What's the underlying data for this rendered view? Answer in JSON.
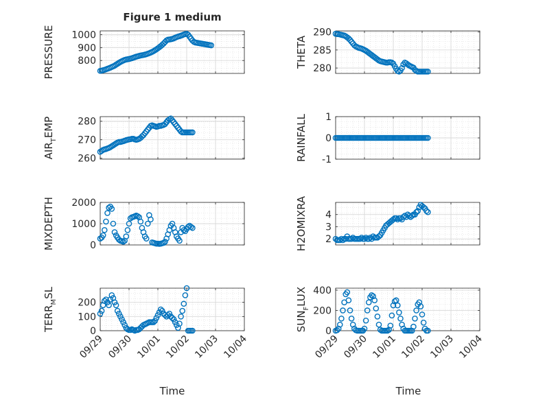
{
  "figure": {
    "title": "Figure 1 medium",
    "marker_color": "#0072BD",
    "axis_color": "#262626",
    "grid_color": "#d9d9d9"
  },
  "chart_data": [
    {
      "type": "scatter",
      "ylabel": "PRESSURE",
      "ylim": [
        700,
        1030
      ],
      "yticks": [
        800,
        900,
        1000
      ],
      "yticklabels": [
        "800",
        "900",
        "1000"
      ],
      "x": [
        0.0,
        0.05,
        0.1,
        0.15,
        0.2,
        0.25,
        0.3,
        0.35,
        0.4,
        0.45,
        0.5,
        0.55,
        0.6,
        0.65,
        0.7,
        0.75,
        0.8,
        0.85,
        0.9,
        0.95,
        1.0,
        1.05,
        1.1,
        1.15,
        1.2,
        1.25,
        1.3,
        1.35,
        1.4,
        1.45,
        1.5,
        1.55,
        1.6,
        1.65,
        1.7,
        1.75,
        1.8,
        1.85,
        1.9,
        1.95,
        2.0,
        2.05,
        2.1,
        2.15,
        2.2,
        2.25,
        2.3,
        2.35,
        2.4,
        2.45,
        2.5,
        2.55,
        2.6,
        2.65,
        2.7,
        2.75,
        2.8,
        2.85,
        2.9,
        2.95,
        3.0,
        3.05,
        3.1,
        3.15,
        3.2,
        3.25,
        3.3,
        3.35,
        3.4,
        3.45,
        3.5,
        3.55,
        3.6,
        3.65,
        3.7,
        3.75,
        3.8,
        3.85
      ],
      "y": [
        720,
        722,
        725,
        728,
        732,
        736,
        740,
        745,
        750,
        755,
        760,
        768,
        775,
        782,
        789,
        795,
        800,
        805,
        808,
        810,
        812,
        815,
        818,
        822,
        826,
        830,
        833,
        836,
        839,
        841,
        843,
        846,
        849,
        853,
        857,
        862,
        867,
        873,
        880,
        887,
        895,
        903,
        912,
        922,
        932,
        944,
        956,
        962,
        963,
        965,
        968,
        972,
        977,
        982,
        986,
        989,
        993,
        997,
        1002,
        1005,
        1007,
        1000,
        985,
        970,
        955,
        945,
        940,
        938,
        936,
        934,
        932,
        930,
        928,
        926,
        924,
        922,
        920,
        918
      ]
    },
    {
      "type": "scatter",
      "ylabel": "THETA",
      "ylim": [
        278.5,
        290.3
      ],
      "yticks": [
        280,
        285,
        290
      ],
      "yticklabels": [
        "280",
        "285",
        "290"
      ],
      "x": [
        0.0,
        0.05,
        0.1,
        0.15,
        0.2,
        0.25,
        0.3,
        0.35,
        0.4,
        0.45,
        0.5,
        0.55,
        0.6,
        0.65,
        0.7,
        0.75,
        0.8,
        0.85,
        0.9,
        0.95,
        1.0,
        1.05,
        1.1,
        1.15,
        1.2,
        1.25,
        1.3,
        1.35,
        1.4,
        1.45,
        1.5,
        1.55,
        1.6,
        1.65,
        1.7,
        1.75,
        1.8,
        1.85,
        1.9,
        1.95,
        2.0,
        2.05,
        2.1,
        2.15,
        2.2,
        2.25,
        2.3,
        2.35,
        2.4,
        2.45,
        2.5,
        2.55,
        2.6,
        2.65,
        2.7,
        2.75,
        2.8,
        2.85,
        2.9,
        2.95,
        3.0,
        3.05,
        3.1,
        3.15,
        3.2
      ],
      "y": [
        289.5,
        289.4,
        289.4,
        289.3,
        289.2,
        289.1,
        289.0,
        288.8,
        288.5,
        288.2,
        287.8,
        287.3,
        286.8,
        286.3,
        286.0,
        285.8,
        285.6,
        285.5,
        285.4,
        285.2,
        285.0,
        284.8,
        284.5,
        284.2,
        283.9,
        283.6,
        283.3,
        283.0,
        282.7,
        282.4,
        282.1,
        281.9,
        281.8,
        281.7,
        281.6,
        281.5,
        281.5,
        281.6,
        281.6,
        281.5,
        281.2,
        280.5,
        279.8,
        279.2,
        279.0,
        279.3,
        280.0,
        281.0,
        281.5,
        281.3,
        281.0,
        280.7,
        280.5,
        280.3,
        280.1,
        279.5,
        279.2,
        279.0,
        279.0,
        279.0,
        279.0,
        279.0,
        279.0,
        279.0,
        279.0
      ]
    },
    {
      "type": "scatter",
      "ylabel": "AIR_TEMP",
      "ylim": [
        259.5,
        282.5
      ],
      "yticks": [
        260,
        270,
        280
      ],
      "yticklabels": [
        "260",
        "270",
        "280"
      ],
      "x": [
        0.0,
        0.05,
        0.1,
        0.15,
        0.2,
        0.25,
        0.3,
        0.35,
        0.4,
        0.45,
        0.5,
        0.55,
        0.6,
        0.65,
        0.7,
        0.75,
        0.8,
        0.85,
        0.9,
        0.95,
        1.0,
        1.05,
        1.1,
        1.15,
        1.2,
        1.25,
        1.3,
        1.35,
        1.4,
        1.45,
        1.5,
        1.55,
        1.6,
        1.65,
        1.7,
        1.75,
        1.8,
        1.85,
        1.9,
        1.95,
        2.0,
        2.05,
        2.1,
        2.15,
        2.2,
        2.25,
        2.3,
        2.35,
        2.4,
        2.45,
        2.5,
        2.55,
        2.6,
        2.65,
        2.7,
        2.75,
        2.8,
        2.85,
        2.9,
        2.95,
        3.0,
        3.05,
        3.1,
        3.15,
        3.2
      ],
      "y": [
        263.5,
        264.0,
        264.5,
        264.8,
        265.0,
        265.3,
        265.6,
        266.0,
        266.5,
        267.0,
        267.5,
        268.0,
        268.5,
        268.8,
        268.8,
        269.0,
        269.2,
        269.5,
        269.8,
        270.0,
        270.2,
        270.3,
        270.5,
        270.5,
        270.2,
        270.0,
        270.2,
        270.5,
        271.0,
        271.8,
        272.5,
        273.5,
        274.5,
        275.5,
        276.5,
        277.5,
        277.8,
        277.5,
        277.3,
        277.0,
        277.2,
        277.5,
        277.5,
        277.8,
        278.0,
        278.5,
        279.5,
        280.5,
        281.0,
        281.5,
        280.5,
        279.5,
        278.5,
        277.5,
        276.5,
        275.5,
        274.5,
        274.0,
        274.0,
        274.0,
        274.0,
        274.0,
        274.0,
        274.0,
        274.0
      ]
    },
    {
      "type": "scatter",
      "ylabel": "RAINFALL",
      "ylim": [
        -1,
        1
      ],
      "yticks": [
        -1,
        0,
        1
      ],
      "yticklabels": [
        "-1",
        "0",
        "1"
      ],
      "x": [
        0.0,
        0.05,
        0.1,
        0.15,
        0.2,
        0.25,
        0.3,
        0.35,
        0.4,
        0.45,
        0.5,
        0.55,
        0.6,
        0.65,
        0.7,
        0.75,
        0.8,
        0.85,
        0.9,
        0.95,
        1.0,
        1.05,
        1.1,
        1.15,
        1.2,
        1.25,
        1.3,
        1.35,
        1.4,
        1.45,
        1.5,
        1.55,
        1.6,
        1.65,
        1.7,
        1.75,
        1.8,
        1.85,
        1.9,
        1.95,
        2.0,
        2.05,
        2.1,
        2.15,
        2.2,
        2.25,
        2.3,
        2.35,
        2.4,
        2.45,
        2.5,
        2.55,
        2.6,
        2.65,
        2.7,
        2.75,
        2.8,
        2.85,
        2.9,
        2.95,
        3.0,
        3.05,
        3.1,
        3.15,
        3.2
      ],
      "y": [
        0,
        0,
        0,
        0,
        0,
        0,
        0,
        0,
        0,
        0,
        0,
        0,
        0,
        0,
        0,
        0,
        0,
        0,
        0,
        0,
        0,
        0,
        0,
        0,
        0,
        0,
        0,
        0,
        0,
        0,
        0,
        0,
        0,
        0,
        0,
        0,
        0,
        0,
        0,
        0,
        0,
        0,
        0,
        0,
        0,
        0,
        0,
        0,
        0,
        0,
        0,
        0,
        0,
        0,
        0,
        0,
        0,
        0,
        0,
        0,
        0,
        0,
        0,
        0,
        0
      ]
    },
    {
      "type": "scatter",
      "ylabel": "MIXDEPTH",
      "ylim": [
        0,
        2000
      ],
      "yticks": [
        0,
        1000,
        2000
      ],
      "yticklabels": [
        "0",
        "1000",
        "2000"
      ],
      "x": [
        0.0,
        0.05,
        0.1,
        0.15,
        0.2,
        0.25,
        0.3,
        0.35,
        0.4,
        0.45,
        0.5,
        0.55,
        0.6,
        0.65,
        0.7,
        0.75,
        0.8,
        0.85,
        0.9,
        0.95,
        1.0,
        1.05,
        1.1,
        1.15,
        1.2,
        1.25,
        1.3,
        1.35,
        1.4,
        1.45,
        1.5,
        1.55,
        1.6,
        1.65,
        1.7,
        1.75,
        1.8,
        1.85,
        1.9,
        1.95,
        2.0,
        2.05,
        2.1,
        2.15,
        2.2,
        2.25,
        2.3,
        2.35,
        2.4,
        2.45,
        2.5,
        2.55,
        2.6,
        2.65,
        2.7,
        2.75,
        2.8,
        2.85,
        2.9,
        2.95,
        3.0,
        3.05,
        3.1,
        3.15,
        3.2
      ],
      "y": [
        300,
        350,
        450,
        700,
        1100,
        1500,
        1750,
        1800,
        1700,
        1000,
        600,
        450,
        350,
        250,
        200,
        180,
        150,
        200,
        400,
        700,
        1000,
        1250,
        1300,
        1320,
        1350,
        1380,
        1350,
        1300,
        1100,
        800,
        600,
        400,
        300,
        1000,
        1400,
        1200,
        120,
        100,
        80,
        60,
        60,
        50,
        60,
        80,
        100,
        150,
        300,
        500,
        700,
        900,
        1000,
        800,
        600,
        400,
        300,
        200,
        600,
        800,
        700,
        650,
        750,
        850,
        900,
        850,
        800
      ]
    },
    {
      "type": "scatter",
      "ylabel": "H2OMIXRA",
      "ylim": [
        1.5,
        5
      ],
      "yticks": [
        2,
        3,
        4
      ],
      "yticklabels": [
        "2",
        "3",
        "4"
      ],
      "x": [
        0.0,
        0.05,
        0.1,
        0.15,
        0.2,
        0.25,
        0.3,
        0.35,
        0.4,
        0.45,
        0.5,
        0.55,
        0.6,
        0.65,
        0.7,
        0.75,
        0.8,
        0.85,
        0.9,
        0.95,
        1.0,
        1.05,
        1.1,
        1.15,
        1.2,
        1.25,
        1.3,
        1.35,
        1.4,
        1.45,
        1.5,
        1.55,
        1.6,
        1.65,
        1.7,
        1.75,
        1.8,
        1.85,
        1.9,
        1.95,
        2.0,
        2.05,
        2.1,
        2.15,
        2.2,
        2.25,
        2.3,
        2.35,
        2.4,
        2.45,
        2.5,
        2.55,
        2.6,
        2.65,
        2.7,
        2.75,
        2.8,
        2.85,
        2.9,
        2.95,
        3.0,
        3.05,
        3.1,
        3.15,
        3.2
      ],
      "y": [
        2.0,
        1.9,
        1.9,
        1.9,
        2.0,
        1.9,
        2.0,
        2.0,
        2.2,
        2.0,
        2.0,
        2.0,
        2.1,
        2.0,
        2.0,
        2.0,
        2.0,
        2.0,
        2.1,
        2.0,
        2.0,
        2.1,
        2.0,
        2.0,
        2.1,
        2.0,
        2.2,
        2.1,
        2.1,
        2.1,
        2.2,
        2.3,
        2.5,
        2.7,
        2.9,
        3.1,
        3.2,
        3.3,
        3.4,
        3.5,
        3.6,
        3.7,
        3.7,
        3.6,
        3.7,
        3.7,
        3.6,
        3.8,
        3.9,
        3.8,
        4.0,
        3.9,
        3.8,
        3.9,
        4.0,
        4.0,
        4.2,
        4.3,
        4.6,
        4.8,
        4.7,
        4.6,
        4.5,
        4.3,
        4.2
      ]
    },
    {
      "type": "scatter",
      "ylabel": "TERR_MSL",
      "ylim": [
        0,
        300
      ],
      "yticks": [
        0,
        100,
        200
      ],
      "yticklabels": [
        "0",
        "100",
        "200"
      ],
      "x": [
        0.0,
        0.05,
        0.1,
        0.15,
        0.2,
        0.25,
        0.3,
        0.35,
        0.4,
        0.45,
        0.5,
        0.55,
        0.6,
        0.65,
        0.7,
        0.75,
        0.8,
        0.85,
        0.9,
        0.95,
        1.0,
        1.05,
        1.1,
        1.15,
        1.2,
        1.25,
        1.3,
        1.35,
        1.4,
        1.45,
        1.5,
        1.55,
        1.6,
        1.65,
        1.7,
        1.75,
        1.8,
        1.85,
        1.9,
        1.95,
        2.0,
        2.05,
        2.1,
        2.15,
        2.2,
        2.25,
        2.3,
        2.35,
        2.4,
        2.45,
        2.5,
        2.55,
        2.6,
        2.65,
        2.7,
        2.75,
        2.8,
        2.85,
        2.9,
        2.95,
        3.0,
        3.05,
        3.1,
        3.15,
        3.2
      ],
      "y": [
        120,
        140,
        180,
        210,
        220,
        200,
        180,
        220,
        250,
        230,
        200,
        180,
        140,
        120,
        100,
        80,
        60,
        40,
        20,
        10,
        5,
        5,
        10,
        5,
        0,
        5,
        5,
        10,
        20,
        30,
        40,
        45,
        50,
        55,
        60,
        60,
        60,
        60,
        70,
        90,
        110,
        130,
        150,
        140,
        120,
        110,
        100,
        110,
        120,
        100,
        90,
        80,
        60,
        40,
        20,
        50,
        100,
        140,
        190,
        250,
        300,
        0,
        0,
        0,
        0
      ]
    },
    {
      "type": "scatter",
      "ylabel": "SUN_FLUX",
      "ylim": [
        0,
        420
      ],
      "yticks": [
        0,
        200,
        400
      ],
      "yticklabels": [
        "0",
        "200",
        "400"
      ],
      "x": [
        0.0,
        0.05,
        0.1,
        0.15,
        0.2,
        0.25,
        0.3,
        0.35,
        0.4,
        0.45,
        0.5,
        0.55,
        0.6,
        0.65,
        0.7,
        0.75,
        0.8,
        0.85,
        0.9,
        0.95,
        1.0,
        1.05,
        1.1,
        1.15,
        1.2,
        1.25,
        1.3,
        1.35,
        1.4,
        1.45,
        1.5,
        1.55,
        1.6,
        1.65,
        1.7,
        1.75,
        1.8,
        1.85,
        1.9,
        1.95,
        2.0,
        2.05,
        2.1,
        2.15,
        2.2,
        2.25,
        2.3,
        2.35,
        2.4,
        2.45,
        2.5,
        2.55,
        2.6,
        2.65,
        2.7,
        2.75,
        2.8,
        2.85,
        2.9,
        2.95,
        3.0,
        3.05,
        3.1,
        3.15,
        3.2
      ],
      "y": [
        0,
        5,
        20,
        60,
        120,
        200,
        280,
        360,
        380,
        300,
        200,
        120,
        60,
        20,
        5,
        0,
        0,
        0,
        0,
        0,
        20,
        100,
        200,
        280,
        330,
        350,
        340,
        300,
        220,
        140,
        60,
        10,
        0,
        0,
        0,
        0,
        0,
        10,
        50,
        150,
        250,
        290,
        300,
        250,
        180,
        120,
        60,
        20,
        0,
        0,
        0,
        0,
        0,
        0,
        40,
        120,
        200,
        260,
        280,
        240,
        160,
        80,
        20,
        0,
        0
      ]
    }
  ],
  "axes": {
    "x_ticklabels": [
      "09/29",
      "09/30",
      "10/01",
      "10/02",
      "10/03",
      "10/04"
    ],
    "xlabel": "Time",
    "ylabels": [
      {
        "main": "PRESSURE",
        "sub": ""
      },
      {
        "main": "THETA",
        "sub": ""
      },
      {
        "main": "AIR",
        "sub": "T",
        "rest": "EMP"
      },
      {
        "main": "RAINFALL",
        "sub": ""
      },
      {
        "main": "MIXDEPTH",
        "sub": ""
      },
      {
        "main": "H2OMIXRA",
        "sub": ""
      },
      {
        "main": "TERR",
        "sub": "M",
        "rest": "SL"
      },
      {
        "main": "SUN",
        "sub": "F",
        "rest": "LUX"
      }
    ]
  }
}
